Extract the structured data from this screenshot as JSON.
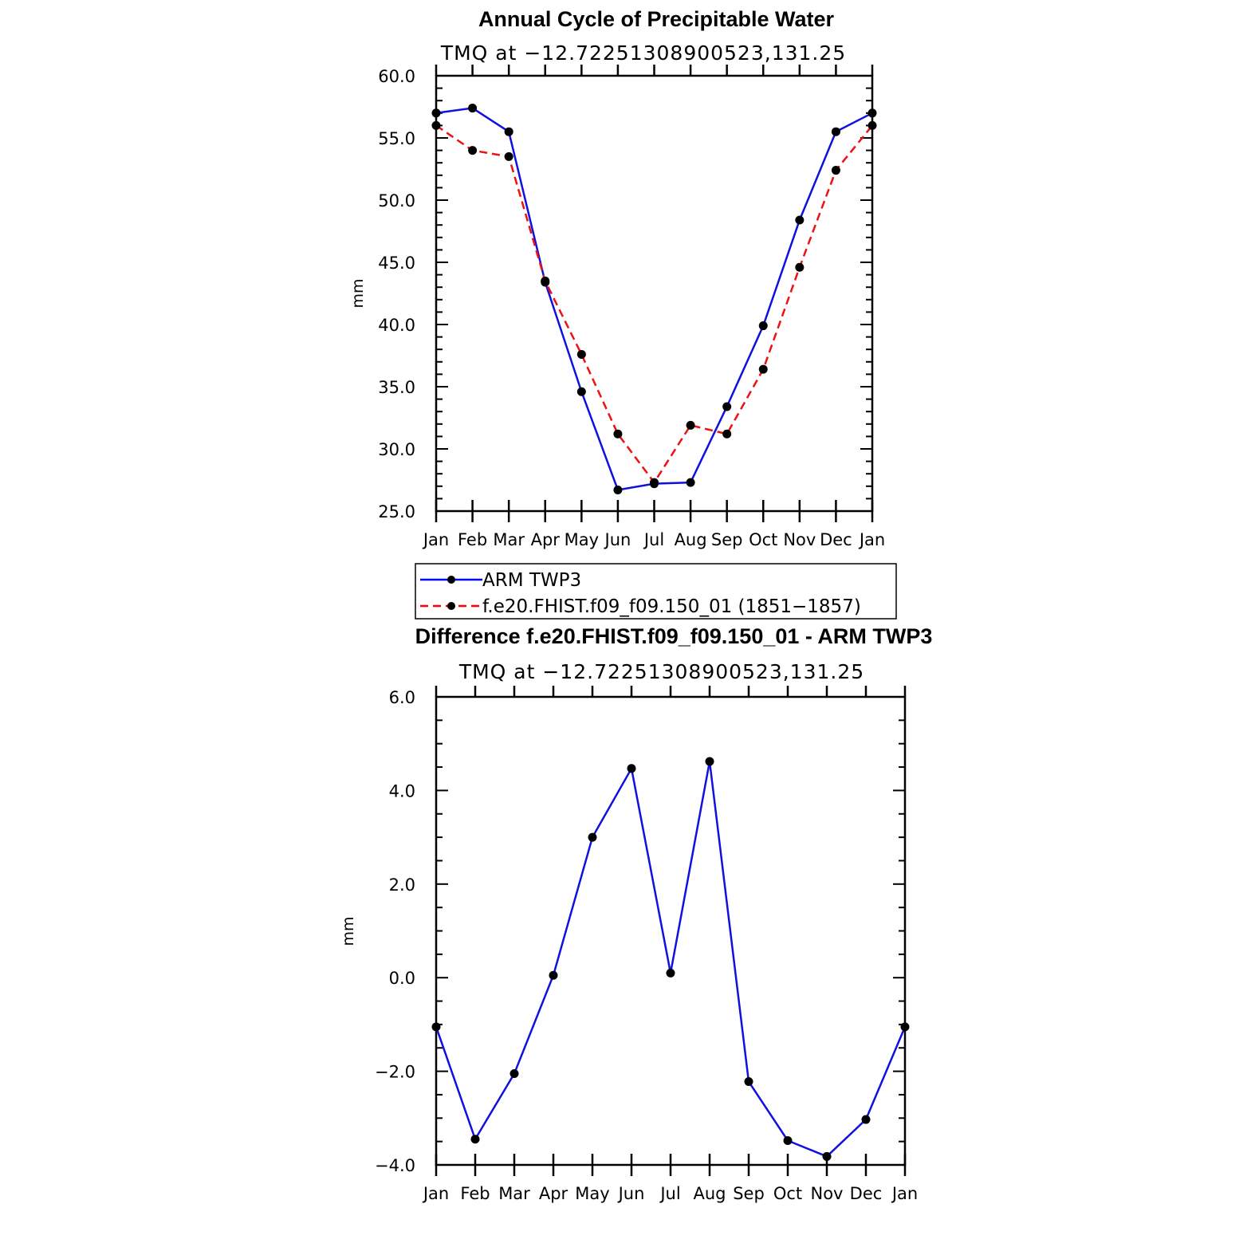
{
  "chart_data": [
    {
      "type": "line",
      "title": "Annual Cycle of Precipitable Water",
      "subtitle": "TMQ at −12.72251308900523,131.25",
      "ylabel": "mm",
      "ylim": [
        25.0,
        60.0
      ],
      "yticks": [
        "25.0",
        "30.0",
        "35.0",
        "40.0",
        "45.0",
        "50.0",
        "55.0",
        "60.0"
      ],
      "categories": [
        "Jan",
        "Feb",
        "Mar",
        "Apr",
        "May",
        "Jun",
        "Jul",
        "Aug",
        "Sep",
        "Oct",
        "Nov",
        "Dec",
        "Jan"
      ],
      "series": [
        {
          "name": "ARM TWP3",
          "color": "#0000ff",
          "dash": "solid",
          "values": [
            57.0,
            57.4,
            55.5,
            43.4,
            34.6,
            26.7,
            27.2,
            27.3,
            33.4,
            39.9,
            48.4,
            55.5,
            57.0
          ]
        },
        {
          "name": "f.e20.FHIST.f09_f09.150_01 (1851−1857)",
          "color": "#ff0000",
          "dash": "dashed",
          "values": [
            56.0,
            54.0,
            53.5,
            43.5,
            37.6,
            31.2,
            27.3,
            31.9,
            31.2,
            36.4,
            44.6,
            52.4,
            56.0
          ]
        }
      ],
      "legend": "below"
    },
    {
      "type": "line",
      "title": "Difference f.e20.FHIST.f09_f09.150_01 - ARM TWP3",
      "subtitle": "TMQ at −12.72251308900523,131.25",
      "ylabel": "mm",
      "ylim": [
        -4.0,
        6.0
      ],
      "yticks": [
        "−4.0",
        "−2.0",
        "0.0",
        "2.0",
        "4.0",
        "6.0"
      ],
      "categories": [
        "Jan",
        "Feb",
        "Mar",
        "Apr",
        "May",
        "Jun",
        "Jul",
        "Aug",
        "Sep",
        "Oct",
        "Nov",
        "Dec",
        "Jan"
      ],
      "series": [
        {
          "color": "#0000ff",
          "dash": "solid",
          "values": [
            -1.05,
            -3.45,
            -2.05,
            0.05,
            3.0,
            4.47,
            0.1,
            4.62,
            -2.22,
            -3.48,
            -3.82,
            -3.03,
            -1.05
          ]
        }
      ]
    }
  ]
}
